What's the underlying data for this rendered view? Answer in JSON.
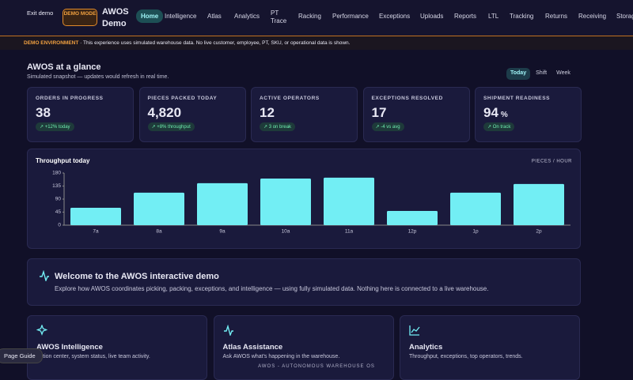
{
  "nav": {
    "exit": "Exit demo",
    "badge": "DEMO MODE",
    "brand": "AWOS Demo",
    "items": [
      "Home",
      "Intelligence",
      "Atlas",
      "Analytics",
      "PT Trace",
      "Racking",
      "Performance",
      "Exceptions",
      "Uploads",
      "Reports",
      "LTL",
      "Tracking",
      "Returns",
      "Receiving",
      "Storage"
    ]
  },
  "banner": {
    "label": "DEMO ENVIRONMENT",
    "text": "· This experience uses simulated warehouse data. No live customer, employee, PT, SKU, or operational data is shown."
  },
  "glance": {
    "title": "AWOS at a glance",
    "subtitle": "Simulated snapshot — updates would refresh in real time.",
    "ranges": [
      "Today",
      "Shift",
      "Week"
    ]
  },
  "kpis": [
    {
      "label": "ORDERS IN PROGRESS",
      "value": "38",
      "delta": "+12% today"
    },
    {
      "label": "PIECES PACKED TODAY",
      "value": "4,820",
      "delta": "+8% throughput"
    },
    {
      "label": "ACTIVE OPERATORS",
      "value": "12",
      "delta": "3 on break"
    },
    {
      "label": "EXCEPTIONS RESOLVED",
      "value": "17",
      "delta": "-4 vs avg"
    },
    {
      "label": "SHIPMENT READINESS",
      "value": "94",
      "unit": "%",
      "delta": "On track"
    }
  ],
  "chart_data": {
    "type": "bar",
    "title": "Throughput today",
    "unit_label": "PIECES / HOUR",
    "categories": [
      "7a",
      "8a",
      "9a",
      "10a",
      "11a",
      "12p",
      "1p",
      "2p"
    ],
    "values": [
      60,
      112,
      145,
      161,
      164,
      49,
      112,
      142
    ],
    "color": "#72eef4",
    "ylim": [
      0,
      180
    ],
    "yticks": [
      0,
      45,
      90,
      135,
      180
    ]
  },
  "welcome": {
    "title": "Welcome to the AWOS interactive demo",
    "text": "Explore how AWOS coordinates picking, packing, exceptions, and intelligence — using fully simulated data. Nothing here is connected to a live warehouse."
  },
  "cards": [
    {
      "title": "AWOS Intelligence",
      "text": "Action center, system status, live team activity."
    },
    {
      "title": "Atlas Assistance",
      "text": "Ask AWOS what's happening in the warehouse."
    },
    {
      "title": "Analytics",
      "text": "Throughput, exceptions, top operators, trends."
    }
  ],
  "footer": "AWOS - AUTONOMOUS WAREHOUSE OS",
  "guide": "Page Guide"
}
